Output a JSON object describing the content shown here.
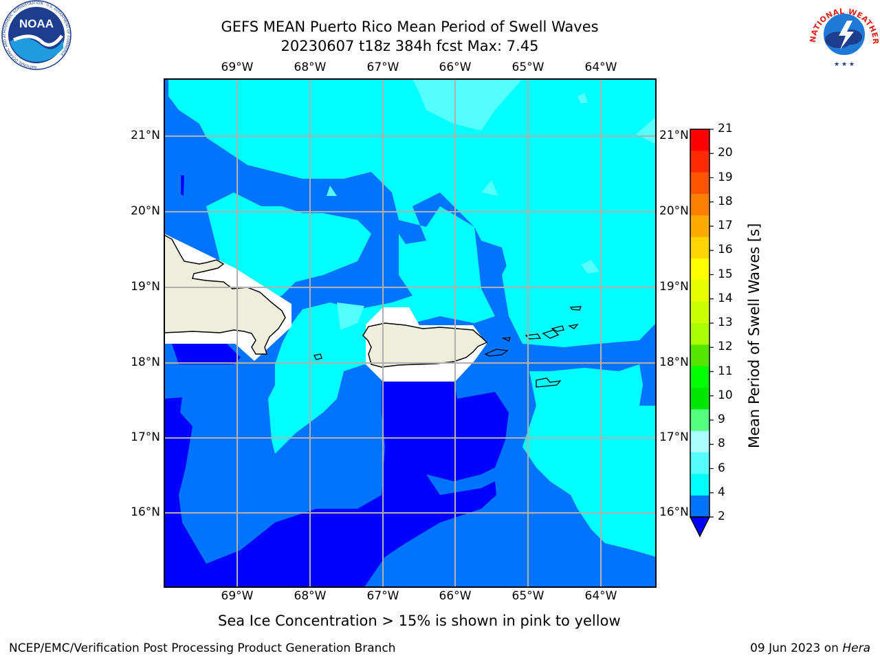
{
  "title": {
    "line1": "GEFS MEAN Puerto Rico Mean Period of Swell Waves",
    "line2": "20230607 t18z 384h fcst   Max: 7.45"
  },
  "logos": {
    "left": {
      "name": "noaa-logo",
      "text": "NOAA",
      "ring_text": "NATIONAL OCEANIC AND ATMOSPHERIC ADMINISTRATION · U.S. DEPARTMENT OF COMMERCE"
    },
    "right": {
      "name": "nws-logo",
      "ring_text": "NATIONAL WEATHER SERVICE"
    }
  },
  "map": {
    "lon_labels": [
      "69°W",
      "68°W",
      "67°W",
      "66°W",
      "65°W",
      "64°W"
    ],
    "lat_labels": [
      "21°N",
      "20°N",
      "19°N",
      "18°N",
      "17°N",
      "16°N"
    ],
    "lon_range": [
      -70.0,
      -63.25
    ],
    "lat_range": [
      15.0,
      21.75
    ],
    "gridlines": true,
    "colors": {
      "lt2": "#0000ff",
      "c2_4": "#0073ff",
      "c4_6": "#00ffff",
      "c6_8": "#55ffff",
      "land": "#eeeedd",
      "mask": "#ffffff",
      "grid": "#b0b0b0"
    }
  },
  "colorbar": {
    "label": "Mean Period of Swell Waves [s]",
    "ticks": [
      "21",
      "20",
      "19",
      "18",
      "17",
      "16",
      "15",
      "14",
      "13",
      "12",
      "11",
      "10",
      "9",
      "8",
      "6",
      "4",
      "2"
    ],
    "colors_top_to_bottom": [
      "#ff0000",
      "#ff2a00",
      "#ff5500",
      "#ff7f00",
      "#ffaa00",
      "#ffd400",
      "#ffff00",
      "#e6ff00",
      "#ccff00",
      "#aaff00",
      "#55e600",
      "#00ff00",
      "#00e600",
      "#55ff7f",
      "#aaffff",
      "#55ffff",
      "#00ffff",
      "#0073ff"
    ],
    "under_color": "#0000ff"
  },
  "caption": "Sea Ice Concentration > 15% is shown in pink to yellow",
  "footer": {
    "left": "NCEP/EMC/Verification Post Processing Product Generation Branch",
    "date": "09 Jun 2023 on ",
    "machine": "Hera"
  }
}
